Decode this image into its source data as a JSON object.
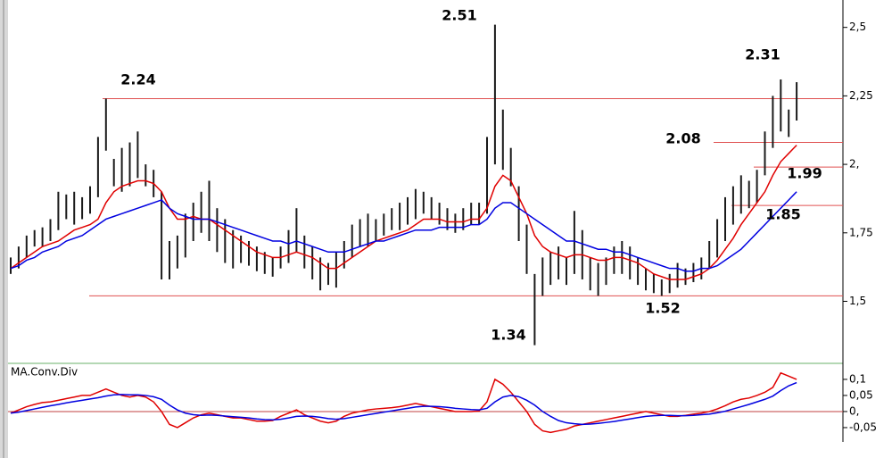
{
  "chart_data": [
    {
      "type": "hilo",
      "high": [
        1.66,
        1.7,
        1.74,
        1.76,
        1.77,
        1.8,
        1.9,
        1.89,
        1.9,
        1.88,
        1.92,
        2.1,
        2.24,
        2.02,
        2.06,
        2.08,
        2.12,
        2.0,
        1.98,
        1.9,
        1.72,
        1.74,
        1.82,
        1.86,
        1.9,
        1.94,
        1.84,
        1.8,
        1.76,
        1.74,
        1.72,
        1.7,
        1.68,
        1.66,
        1.7,
        1.76,
        1.84,
        1.74,
        1.7,
        1.66,
        1.64,
        1.68,
        1.72,
        1.78,
        1.8,
        1.82,
        1.8,
        1.82,
        1.84,
        1.86,
        1.88,
        1.91,
        1.9,
        1.88,
        1.86,
        1.84,
        1.82,
        1.84,
        1.86,
        1.86,
        2.1,
        2.51,
        2.2,
        2.06,
        1.92,
        1.78,
        1.6,
        1.66,
        1.68,
        1.7,
        1.66,
        1.83,
        1.76,
        1.66,
        1.64,
        1.66,
        1.7,
        1.72,
        1.7,
        1.66,
        1.62,
        1.6,
        1.58,
        1.6,
        1.64,
        1.62,
        1.64,
        1.66,
        1.72,
        1.8,
        1.88,
        1.92,
        1.96,
        1.94,
        1.98,
        2.12,
        2.25,
        2.31,
        2.2,
        2.3
      ],
      "low": [
        1.6,
        1.62,
        1.66,
        1.7,
        1.7,
        1.72,
        1.76,
        1.8,
        1.78,
        1.8,
        1.82,
        1.88,
        2.05,
        1.92,
        1.9,
        1.92,
        1.95,
        1.92,
        1.88,
        1.58,
        1.58,
        1.62,
        1.66,
        1.72,
        1.75,
        1.72,
        1.68,
        1.64,
        1.62,
        1.64,
        1.63,
        1.61,
        1.6,
        1.59,
        1.62,
        1.64,
        1.68,
        1.62,
        1.58,
        1.54,
        1.56,
        1.55,
        1.62,
        1.66,
        1.7,
        1.7,
        1.72,
        1.74,
        1.76,
        1.76,
        1.78,
        1.8,
        1.82,
        1.8,
        1.78,
        1.76,
        1.75,
        1.76,
        1.78,
        1.78,
        1.82,
        2.0,
        1.98,
        1.92,
        1.72,
        1.6,
        1.34,
        1.52,
        1.56,
        1.58,
        1.56,
        1.6,
        1.58,
        1.54,
        1.52,
        1.56,
        1.6,
        1.6,
        1.58,
        1.56,
        1.54,
        1.53,
        1.52,
        1.53,
        1.55,
        1.56,
        1.57,
        1.58,
        1.62,
        1.66,
        1.72,
        1.78,
        1.82,
        1.84,
        1.86,
        1.96,
        2.06,
        2.12,
        2.1,
        2.16
      ],
      "bar_color": "#1a1a1a",
      "series": [
        {
          "color": "#e00000",
          "values": [
            1.62,
            1.64,
            1.66,
            1.68,
            1.7,
            1.71,
            1.72,
            1.74,
            1.76,
            1.77,
            1.78,
            1.8,
            1.86,
            1.9,
            1.92,
            1.93,
            1.94,
            1.94,
            1.93,
            1.9,
            1.84,
            1.8,
            1.8,
            1.81,
            1.8,
            1.8,
            1.78,
            1.76,
            1.74,
            1.72,
            1.7,
            1.68,
            1.67,
            1.66,
            1.66,
            1.67,
            1.68,
            1.67,
            1.66,
            1.64,
            1.62,
            1.62,
            1.64,
            1.66,
            1.68,
            1.7,
            1.72,
            1.73,
            1.74,
            1.75,
            1.76,
            1.78,
            1.8,
            1.8,
            1.8,
            1.79,
            1.79,
            1.79,
            1.8,
            1.8,
            1.84,
            1.92,
            1.96,
            1.94,
            1.88,
            1.82,
            1.74,
            1.7,
            1.68,
            1.67,
            1.66,
            1.67,
            1.67,
            1.66,
            1.65,
            1.65,
            1.66,
            1.66,
            1.65,
            1.64,
            1.62,
            1.6,
            1.59,
            1.58,
            1.58,
            1.58,
            1.59,
            1.6,
            1.62,
            1.65,
            1.69,
            1.73,
            1.78,
            1.82,
            1.86,
            1.9,
            1.96,
            2.01,
            2.04,
            2.07
          ]
        },
        {
          "color": "#0000e0",
          "values": [
            1.62,
            1.63,
            1.65,
            1.66,
            1.68,
            1.69,
            1.7,
            1.72,
            1.73,
            1.74,
            1.76,
            1.78,
            1.8,
            1.81,
            1.82,
            1.83,
            1.84,
            1.85,
            1.86,
            1.87,
            1.84,
            1.82,
            1.81,
            1.8,
            1.8,
            1.8,
            1.79,
            1.78,
            1.77,
            1.76,
            1.75,
            1.74,
            1.73,
            1.72,
            1.72,
            1.71,
            1.72,
            1.71,
            1.7,
            1.69,
            1.68,
            1.68,
            1.68,
            1.69,
            1.7,
            1.71,
            1.72,
            1.72,
            1.73,
            1.74,
            1.75,
            1.76,
            1.76,
            1.76,
            1.77,
            1.77,
            1.77,
            1.77,
            1.78,
            1.78,
            1.8,
            1.84,
            1.86,
            1.86,
            1.84,
            1.82,
            1.8,
            1.78,
            1.76,
            1.74,
            1.72,
            1.72,
            1.71,
            1.7,
            1.69,
            1.69,
            1.68,
            1.68,
            1.67,
            1.66,
            1.65,
            1.64,
            1.63,
            1.62,
            1.62,
            1.61,
            1.61,
            1.62,
            1.62,
            1.63,
            1.65,
            1.67,
            1.69,
            1.72,
            1.75,
            1.78,
            1.81,
            1.84,
            1.87,
            1.9
          ]
        }
      ],
      "ylim": [
        1.28,
        2.6
      ],
      "yticks": [
        {
          "value": 1.5,
          "label": "1,5"
        },
        {
          "value": 1.75,
          "label": "1,75"
        },
        {
          "value": 2,
          "label": "2,"
        },
        {
          "value": 2.25,
          "label": "2,25"
        },
        {
          "value": 2.5,
          "label": "2,5"
        }
      ],
      "level_color": "#e05050",
      "levels": [
        {
          "value": 2.24,
          "label": "2.24"
        },
        {
          "value": 1.52,
          "label": "1.52"
        },
        {
          "value": 2.08,
          "label": "2.08"
        },
        {
          "value": 1.99,
          "label": "1.99"
        },
        {
          "value": 1.85,
          "label": "1.85"
        }
      ],
      "annotations": [
        {
          "value": 2.51,
          "label": "2.51"
        },
        {
          "value": 1.34,
          "label": "1.34"
        },
        {
          "value": 2.31,
          "label": "2.31"
        }
      ]
    },
    {
      "type": "line",
      "title": "MA.Conv.Div",
      "series": [
        {
          "color": "#e00000",
          "values": [
            -0.005,
            0.005,
            0.015,
            0.022,
            0.028,
            0.03,
            0.035,
            0.04,
            0.045,
            0.05,
            0.05,
            0.06,
            0.07,
            0.06,
            0.05,
            0.045,
            0.05,
            0.045,
            0.03,
            0.0,
            -0.04,
            -0.05,
            -0.035,
            -0.02,
            -0.01,
            -0.005,
            -0.01,
            -0.015,
            -0.02,
            -0.02,
            -0.025,
            -0.03,
            -0.03,
            -0.028,
            -0.015,
            -0.005,
            0.005,
            -0.01,
            -0.02,
            -0.03,
            -0.035,
            -0.03,
            -0.015,
            -0.005,
            0.0,
            0.005,
            0.008,
            0.01,
            0.012,
            0.015,
            0.02,
            0.025,
            0.02,
            0.015,
            0.01,
            0.005,
            0.0,
            0.0,
            0.0,
            0.002,
            0.03,
            0.1,
            0.085,
            0.06,
            0.03,
            0.0,
            -0.04,
            -0.06,
            -0.065,
            -0.06,
            -0.055,
            -0.045,
            -0.04,
            -0.035,
            -0.03,
            -0.025,
            -0.02,
            -0.015,
            -0.01,
            -0.005,
            0.0,
            -0.005,
            -0.01,
            -0.015,
            -0.015,
            -0.012,
            -0.008,
            -0.005,
            0.0,
            0.008,
            0.018,
            0.03,
            0.038,
            0.042,
            0.05,
            0.06,
            0.075,
            0.12,
            0.11,
            0.1
          ]
        },
        {
          "color": "#0000e0",
          "values": [
            -0.005,
            -0.002,
            0.003,
            0.008,
            0.013,
            0.018,
            0.022,
            0.027,
            0.031,
            0.035,
            0.039,
            0.043,
            0.048,
            0.052,
            0.053,
            0.052,
            0.052,
            0.05,
            0.046,
            0.038,
            0.02,
            0.005,
            -0.005,
            -0.01,
            -0.012,
            -0.011,
            -0.012,
            -0.014,
            -0.016,
            -0.018,
            -0.02,
            -0.023,
            -0.025,
            -0.026,
            -0.024,
            -0.02,
            -0.015,
            -0.014,
            -0.015,
            -0.018,
            -0.022,
            -0.024,
            -0.022,
            -0.018,
            -0.014,
            -0.01,
            -0.006,
            -0.002,
            0.002,
            0.006,
            0.01,
            0.014,
            0.016,
            0.016,
            0.015,
            0.013,
            0.01,
            0.008,
            0.006,
            0.005,
            0.01,
            0.03,
            0.045,
            0.05,
            0.046,
            0.035,
            0.02,
            0.0,
            -0.015,
            -0.028,
            -0.035,
            -0.038,
            -0.04,
            -0.039,
            -0.037,
            -0.034,
            -0.031,
            -0.027,
            -0.023,
            -0.019,
            -0.015,
            -0.013,
            -0.012,
            -0.012,
            -0.013,
            -0.013,
            -0.012,
            -0.01,
            -0.008,
            -0.004,
            0.001,
            0.008,
            0.015,
            0.022,
            0.03,
            0.038,
            0.048,
            0.065,
            0.08,
            0.09
          ]
        }
      ],
      "ylim": [
        -0.089,
        0.147
      ],
      "yticks": [
        {
          "value": -0.05,
          "label": "-0,05"
        },
        {
          "value": 0,
          "label": "0,"
        },
        {
          "value": 0.05,
          "label": "0,05"
        },
        {
          "value": 0.1,
          "label": "0,1"
        }
      ],
      "zero_color": "#c04040"
    }
  ]
}
